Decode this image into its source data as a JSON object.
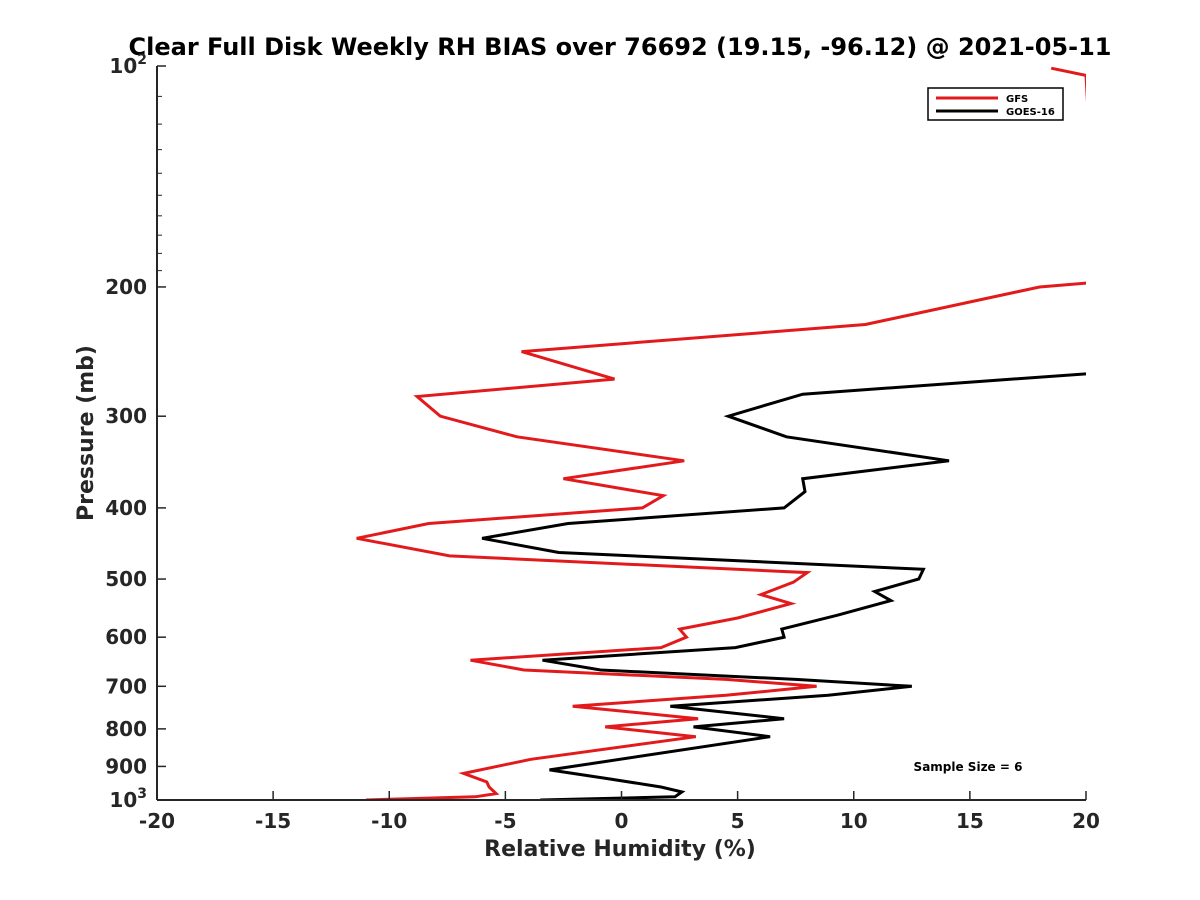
{
  "chart_data": {
    "type": "line",
    "title": "Clear Full Disk Weekly RH BIAS over 76692 (19.15, -96.12) @ 2021-05-11",
    "xlabel": "Relative Humidity (%)",
    "ylabel": "Pressure (mb)",
    "xlim": [
      -20,
      20
    ],
    "ylim": [
      100,
      1000
    ],
    "yscale": "log",
    "y_reversed": true,
    "grid": false,
    "xticks": [
      -20,
      -15,
      -10,
      -5,
      0,
      5,
      10,
      15,
      20
    ],
    "xtick_labels": [
      "-20",
      "-15",
      "-10",
      "-5",
      "0",
      "5",
      "10",
      "15",
      "20"
    ],
    "yticks": [
      100,
      200,
      300,
      400,
      500,
      600,
      700,
      800,
      900,
      1000
    ],
    "ytick_labels": [
      {
        "base": "10",
        "exp": "2"
      },
      {
        "base": "200"
      },
      {
        "base": "300"
      },
      {
        "base": "400"
      },
      {
        "base": "500"
      },
      {
        "base": "600"
      },
      {
        "base": "700"
      },
      {
        "base": "800"
      },
      {
        "base": "900"
      },
      {
        "base": "10",
        "exp": "3"
      }
    ],
    "legend_position": "top-right",
    "annotation": "Sample Size = 6",
    "series": [
      {
        "name": "GFS",
        "color": "#e31a1c",
        "points": [
          [
            18.5,
            100.7
          ],
          [
            20.0,
            103.0
          ],
          [
            20.5,
            197
          ],
          [
            18,
            200
          ],
          [
            10.5,
            225
          ],
          [
            -4.3,
            245
          ],
          [
            -0.3,
            267
          ],
          [
            -8.8,
            282
          ],
          [
            -7.8,
            300
          ],
          [
            -4.5,
            320
          ],
          [
            2.7,
            345
          ],
          [
            -2.5,
            365
          ],
          [
            1.8,
            385
          ],
          [
            0.9,
            400
          ],
          [
            -8.3,
            420
          ],
          [
            -11.4,
            440
          ],
          [
            -7.4,
            465
          ],
          [
            8.0,
            490
          ],
          [
            7.4,
            505
          ],
          [
            6.0,
            525
          ],
          [
            7.3,
            540
          ],
          [
            5.0,
            565
          ],
          [
            2.5,
            585
          ],
          [
            2.8,
            600
          ],
          [
            1.7,
            620
          ],
          [
            -6.5,
            645
          ],
          [
            -4.2,
            665
          ],
          [
            4.5,
            685
          ],
          [
            8.4,
            700
          ],
          [
            4.5,
            720
          ],
          [
            -2.1,
            745
          ],
          [
            3.3,
            775
          ],
          [
            -0.7,
            795
          ],
          [
            3.2,
            820
          ],
          [
            -3.9,
            880
          ],
          [
            -6.8,
            920
          ],
          [
            -5.8,
            945
          ],
          [
            -5.7,
            960
          ],
          [
            -5.4,
            980
          ],
          [
            -6.3,
            990
          ],
          [
            -11.0,
            1000
          ]
        ]
      },
      {
        "name": "GOES-16",
        "color": "#000000",
        "points": [
          [
            20.5,
            262
          ],
          [
            7.8,
            280
          ],
          [
            4.6,
            300
          ],
          [
            7.1,
            320
          ],
          [
            14.1,
            345
          ],
          [
            7.8,
            365
          ],
          [
            7.9,
            380
          ],
          [
            7.0,
            400
          ],
          [
            -2.3,
            420
          ],
          [
            -6.0,
            440
          ],
          [
            -2.7,
            460
          ],
          [
            13.0,
            485
          ],
          [
            12.8,
            500
          ],
          [
            10.9,
            520
          ],
          [
            11.6,
            535
          ],
          [
            9.3,
            560
          ],
          [
            6.9,
            585
          ],
          [
            7.0,
            600
          ],
          [
            4.9,
            620
          ],
          [
            -3.4,
            645
          ],
          [
            -0.9,
            665
          ],
          [
            7.5,
            685
          ],
          [
            12.5,
            700
          ],
          [
            8.9,
            720
          ],
          [
            2.1,
            745
          ],
          [
            7.0,
            775
          ],
          [
            3.1,
            795
          ],
          [
            6.4,
            820
          ],
          [
            -3.1,
            910
          ],
          [
            -0.6,
            935
          ],
          [
            1.7,
            960
          ],
          [
            2.6,
            975
          ],
          [
            2.3,
            990
          ],
          [
            -3.5,
            1000
          ]
        ]
      }
    ]
  }
}
